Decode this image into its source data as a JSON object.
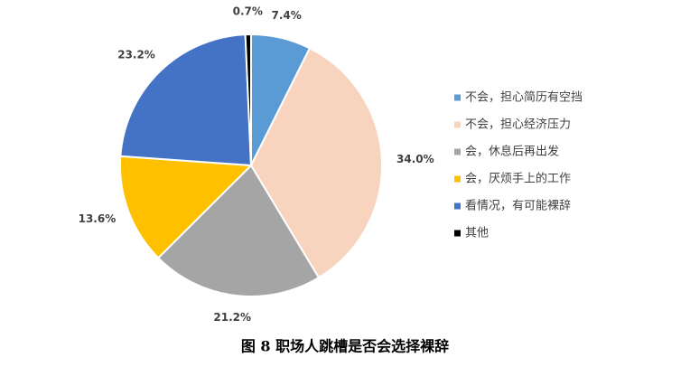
{
  "chart_data": {
    "type": "pie",
    "title": "图 8  职场人跳槽是否会选择裸辞",
    "categories": [
      "不会，担心简历有空挡",
      "不会，担心经济压力",
      "会，休息后再出发",
      "会，厌烦手上的工作",
      "看情况，有可能裸辞",
      "其他"
    ],
    "values": [
      7.4,
      34.0,
      21.2,
      13.6,
      23.2,
      0.7
    ],
    "value_labels": [
      "7.4%",
      "34.0%",
      "21.2%",
      "13.6%",
      "23.2%",
      "0.7%"
    ],
    "colors": [
      "#5b9bd5",
      "#f8d4bf",
      "#a5a5a5",
      "#ffc000",
      "#4472c4",
      "#000000"
    ],
    "legend": "right"
  }
}
